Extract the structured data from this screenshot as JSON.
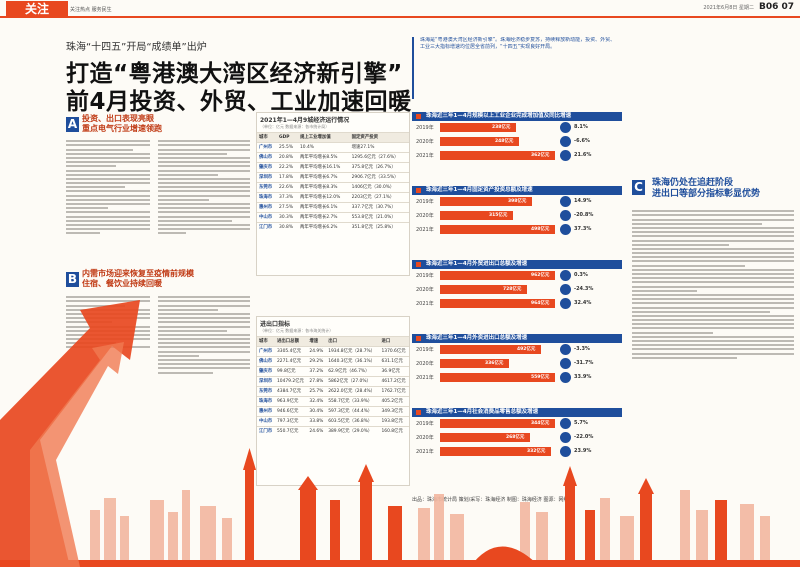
{
  "masthead": {
    "section_tag": "关注",
    "section_sub": "关注热点 服务民生",
    "date": "2021年6月8日 星期二",
    "page_number": "B06 07"
  },
  "article": {
    "kicker": "珠海“十四五”开局“成绩单”出炉",
    "headline_1": "打造“粤港澳大湾区经济新引擎”",
    "headline_2": "前4月投资、外贸、工业加速回暖",
    "lead": "珠海是“粤港澳大湾区经济新引擎”。珠海经济稳步复苏，持续释放新动能，投资、外贸、工业三大指标增速均位居全省前列，“十四五”实现良好开局。"
  },
  "sections": [
    {
      "letter": "A",
      "head_1": "投资、出口表现亮眼",
      "head_2": "重点电气行业增速领跑"
    },
    {
      "letter": "B",
      "head_1": "内需市场迎来恢复至疫情前规模",
      "head_2": "住宿、餐饮业持续回暖"
    },
    {
      "letter": "C",
      "head_1": "珠海仍处在追赶阶段",
      "head_2": "进出口等部分指标彰显优势"
    }
  ],
  "table1": {
    "title": "2021年1—4月9城经济运行情况",
    "note": "（单位：亿元 数据来源：各市统计局）",
    "headers": [
      "城市",
      "GDP",
      "规上工业增加值",
      "固定资产投资"
    ],
    "rows": [
      [
        "广州市",
        "25.5%",
        "10.4%",
        "增速27.1%"
      ],
      [
        "佛山市",
        "20.8%",
        "两年平均增长8.5%",
        "1295.6亿元（27.6%）"
      ],
      [
        "肇庆市",
        "22.2%",
        "两年平均增长16.1%",
        "375.8亿元（26.7%）"
      ],
      [
        "深圳市",
        "17.8%",
        "两年平均增长6.7%",
        "2906.7亿元（33.5%）"
      ],
      [
        "东莞市",
        "22.6%",
        "两年平均增长8.3%",
        "1406亿元（30.0%）"
      ],
      [
        "珠海市",
        "37.3%",
        "两年平均增长12.0%",
        "2203亿元（27.1%）"
      ],
      [
        "惠州市",
        "27.5%",
        "两年平均增长6.1%",
        "337.7亿元（30.7%）"
      ],
      [
        "中山市",
        "30.3%",
        "两年平均增长2.7%",
        "553.8亿元（21.0%）"
      ],
      [
        "江门市",
        "30.8%",
        "两年平均增长6.2%",
        "351.8亿元（25.8%）"
      ]
    ]
  },
  "table2": {
    "title": "进出口指标",
    "note": "（单位：亿元 数据来源：各市海关统计）",
    "headers": [
      "城市",
      "进出口总额",
      "增速",
      "出口",
      "进口"
    ],
    "rows": [
      [
        "广州市",
        "3305.4亿元",
        "24.9%",
        "1934.8亿元（28.7%）",
        "1370.6亿元"
      ],
      [
        "佛山市",
        "2271.4亿元",
        "29.2%",
        "1640.3亿元（36.1%）",
        "631.1亿元"
      ],
      [
        "肇庆市",
        "99.8亿元",
        "37.2%",
        "62.9亿元（46.7%）",
        "36.9亿元"
      ],
      [
        "深圳市",
        "10479.2亿元",
        "27.8%",
        "5862亿元（27.0%）",
        "4617.2亿元"
      ],
      [
        "东莞市",
        "4384.7亿元",
        "25.7%",
        "2622.0亿元（28.4%）",
        "1762.7亿元"
      ],
      [
        "珠海市",
        "963.9亿元",
        "32.4%",
        "558.7亿元（33.9%）",
        "405.2亿元"
      ],
      [
        "惠州市",
        "946.6亿元",
        "30.4%",
        "597.3亿元（44.4%）",
        "349.3亿元"
      ],
      [
        "中山市",
        "797.3亿元",
        "33.8%",
        "603.5亿元（36.8%）",
        "193.8亿元"
      ],
      [
        "江门市",
        "550.7亿元",
        "24.6%",
        "389.9亿元（29.0%）",
        "160.8亿元"
      ]
    ]
  },
  "chart_data": [
    {
      "type": "bar",
      "title": "珠海近三年1—4月规模以上工业企业完成增加值及同比增速",
      "categories": [
        "2019年",
        "2020年",
        "2021年"
      ],
      "values": [
        238,
        248,
        362
      ],
      "value_labels": [
        "238亿元",
        "248亿元",
        "362亿元"
      ],
      "growth": [
        "8.1%",
        "-6.6%",
        "21.6%"
      ]
    },
    {
      "type": "bar",
      "title": "珠海近三年1—4月固定资产投资总额及增速",
      "categories": [
        "2019年",
        "2020年",
        "2021年"
      ],
      "values": [
        398,
        315,
        498
      ],
      "value_labels": [
        "398亿元",
        "315亿元",
        "498亿元"
      ],
      "growth": [
        "14.9%",
        "-20.8%",
        "37.3%"
      ]
    },
    {
      "type": "bar",
      "title": "珠海近三年1—4月外贸进出口总额及增速",
      "categories": [
        "2019年",
        "2020年",
        "2021年"
      ],
      "values": [
        962,
        728,
        964
      ],
      "value_labels": [
        "962亿元",
        "728亿元",
        "964亿元"
      ],
      "growth": [
        "0.3%",
        "-24.3%",
        "32.4%"
      ]
    },
    {
      "type": "bar",
      "title": "珠海近三年1—4月外资进出口总额及增速",
      "categories": [
        "2019年",
        "2020年",
        "2021年"
      ],
      "values": [
        492,
        336,
        559
      ],
      "value_labels": [
        "492亿元",
        "336亿元",
        "559亿元"
      ],
      "growth": [
        "-3.3%",
        "-31.7%",
        "33.9%"
      ]
    },
    {
      "type": "bar",
      "title": "珠海近三年1—4月社会消费品零售总额及增速",
      "categories": [
        "2019年",
        "2020年",
        "2021年"
      ],
      "values": [
        344,
        268,
        332
      ],
      "value_labels": [
        "344亿元",
        "268亿元",
        "332亿元"
      ],
      "growth": [
        "5.7%",
        "-22.0%",
        "23.9%"
      ]
    }
  ],
  "credit": "出品：珠海市统计局 策划/采写：珠海经济 制图：珠海经济 图源：网络"
}
